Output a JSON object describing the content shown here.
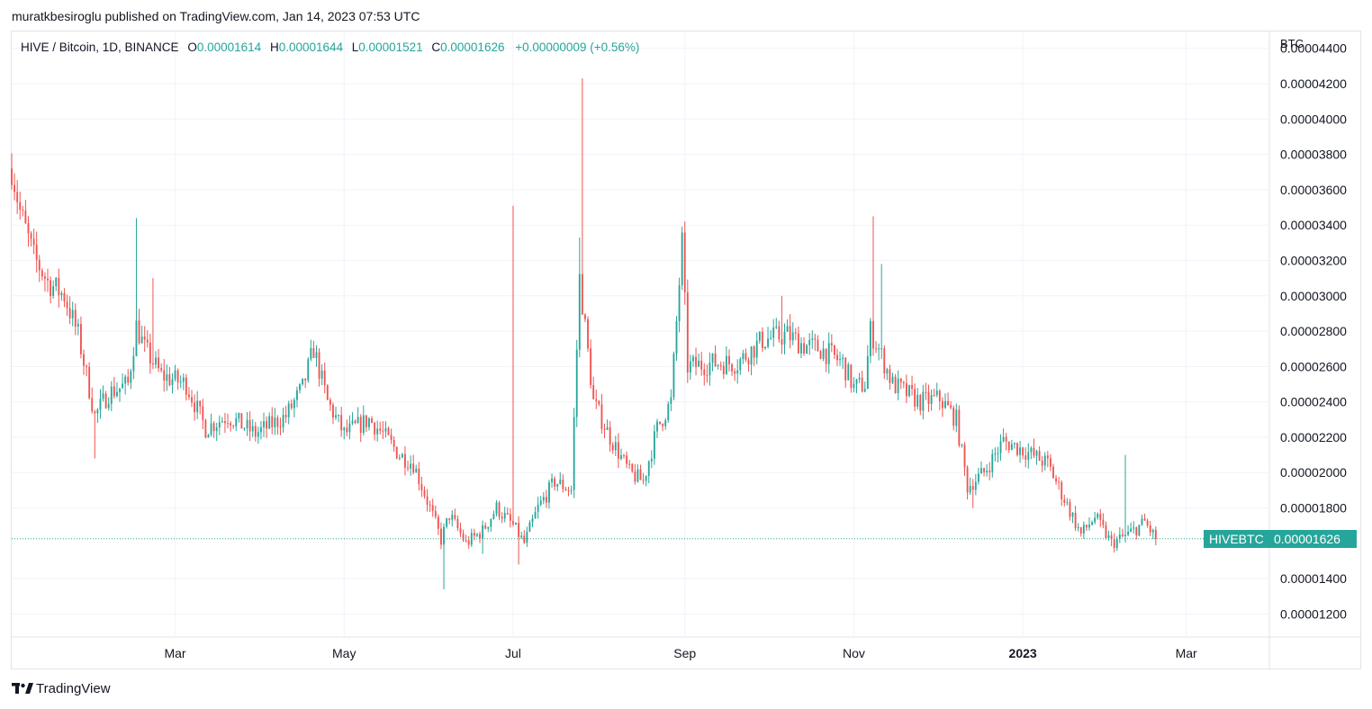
{
  "header": {
    "published": "muratkbesiroglu published on TradingView.com, Jan 14, 2023 07:53 UTC"
  },
  "legend": {
    "symbol": "HIVE / Bitcoin, 1D, BINANCE",
    "open_label": "O",
    "open": "0.00001614",
    "high_label": "H",
    "high": "0.00001644",
    "low_label": "L",
    "low": "0.00001521",
    "close_label": "C",
    "close": "0.00001626",
    "change": "+0.00000009 (+0.56%)"
  },
  "price_label": {
    "ticker": "HIVEBTC",
    "value": "0.00001626"
  },
  "footer": {
    "brand": "TradingView"
  },
  "colors": {
    "up": "#26a69a",
    "down": "#ef5350",
    "grid": "#f0f3fa",
    "axis_text": "#131722"
  },
  "chart_data": {
    "type": "candlestick",
    "symbol": "HIVEBTC",
    "interval": "1D",
    "exchange": "BINANCE",
    "currency_label": "BTC",
    "y_ticks": [
      "0.00004400",
      "0.00004200",
      "0.00004000",
      "0.00003800",
      "0.00003600",
      "0.00003400",
      "0.00003200",
      "0.00003000",
      "0.00002800",
      "0.00002600",
      "0.00002400",
      "0.00002200",
      "0.00002000",
      "0.00001800",
      "0.00001400",
      "0.00001200"
    ],
    "x_ticks": [
      {
        "label": "Mar",
        "bold": false
      },
      {
        "label": "May",
        "bold": false
      },
      {
        "label": "Jul",
        "bold": false
      },
      {
        "label": "Sep",
        "bold": false
      },
      {
        "label": "Nov",
        "bold": false
      },
      {
        "label": "2023",
        "bold": true
      },
      {
        "label": "Mar",
        "bold": false
      }
    ],
    "ylim": [
      1.08e-05,
      4.48e-05
    ],
    "last_close": 1.626e-05,
    "x_range": [
      "2022-01-01",
      "2023-03-31"
    ],
    "anchors": [
      [
        "2022-01-01",
        3.72e-05
      ],
      [
        "2022-01-04",
        3.48e-05
      ],
      [
        "2022-01-09",
        3.22e-05
      ],
      [
        "2022-01-14",
        3.08e-05
      ],
      [
        "2022-01-20",
        3e-05
      ],
      [
        "2022-01-25",
        2.78e-05
      ],
      [
        "2022-01-31",
        2.32e-05
      ],
      [
        "2022-02-05",
        2.45e-05
      ],
      [
        "2022-02-12",
        2.5e-05
      ],
      [
        "2022-02-15",
        2.83e-05
      ],
      [
        "2022-02-18",
        2.7e-05
      ],
      [
        "2022-02-24",
        2.55e-05
      ],
      [
        "2022-03-05",
        2.5e-05
      ],
      [
        "2022-03-12",
        2.25e-05
      ],
      [
        "2022-03-20",
        2.32e-05
      ],
      [
        "2022-03-30",
        2.22e-05
      ],
      [
        "2022-04-10",
        2.32e-05
      ],
      [
        "2022-04-16",
        2.48e-05
      ],
      [
        "2022-04-20",
        2.7e-05
      ],
      [
        "2022-04-25",
        2.4e-05
      ],
      [
        "2022-05-01",
        2.22e-05
      ],
      [
        "2022-05-10",
        2.3e-05
      ],
      [
        "2022-05-15",
        2.22e-05
      ],
      [
        "2022-05-21",
        2.1e-05
      ],
      [
        "2022-05-26",
        2.05e-05
      ],
      [
        "2022-06-01",
        1.8e-05
      ],
      [
        "2022-06-05",
        1.62e-05
      ],
      [
        "2022-06-08",
        1.76e-05
      ],
      [
        "2022-06-14",
        1.6e-05
      ],
      [
        "2022-06-20",
        1.67e-05
      ],
      [
        "2022-06-25",
        1.8e-05
      ],
      [
        "2022-07-01",
        1.7e-05
      ],
      [
        "2022-07-05",
        1.6e-05
      ],
      [
        "2022-07-10",
        1.8e-05
      ],
      [
        "2022-07-16",
        1.95e-05
      ],
      [
        "2022-07-22",
        1.9e-05
      ],
      [
        "2022-07-25",
        3.1e-05
      ],
      [
        "2022-07-30",
        2.4e-05
      ],
      [
        "2022-08-05",
        2.2e-05
      ],
      [
        "2022-08-12",
        2e-05
      ],
      [
        "2022-08-17",
        1.95e-05
      ],
      [
        "2022-08-22",
        2.25e-05
      ],
      [
        "2022-08-27",
        2.4e-05
      ],
      [
        "2022-08-31",
        3.3e-05
      ],
      [
        "2022-09-02",
        2.6e-05
      ],
      [
        "2022-09-12",
        2.62e-05
      ],
      [
        "2022-09-20",
        2.62e-05
      ],
      [
        "2022-09-29",
        2.75e-05
      ],
      [
        "2022-10-08",
        2.78e-05
      ],
      [
        "2022-10-14",
        2.72e-05
      ],
      [
        "2022-10-20",
        2.7e-05
      ],
      [
        "2022-10-28",
        2.62e-05
      ],
      [
        "2022-11-01",
        2.48e-05
      ],
      [
        "2022-11-05",
        2.5e-05
      ],
      [
        "2022-11-07",
        2.8e-05
      ],
      [
        "2022-11-10",
        2.7e-05
      ],
      [
        "2022-11-15",
        2.5e-05
      ],
      [
        "2022-11-25",
        2.4e-05
      ],
      [
        "2022-12-02",
        2.42e-05
      ],
      [
        "2022-12-08",
        2.3e-05
      ],
      [
        "2022-12-12",
        1.92e-05
      ],
      [
        "2022-12-18",
        2e-05
      ],
      [
        "2022-12-25",
        2.18e-05
      ],
      [
        "2023-01-02",
        2.12e-05
      ],
      [
        "2023-01-10",
        2.05e-05
      ],
      [
        "2023-01-16",
        1.85e-05
      ],
      [
        "2023-01-22",
        1.65e-05
      ],
      [
        "2023-01-27",
        1.75e-05
      ],
      [
        "2023-02-02",
        1.6e-05
      ],
      [
        "2023-02-08",
        1.65e-05
      ],
      [
        "2023-02-14",
        1.72e-05
      ],
      [
        "2023-02-18",
        1.626e-05
      ]
    ],
    "spikes": [
      [
        "2022-02-15",
        3.44e-05
      ],
      [
        "2022-02-21",
        3.1e-05
      ],
      [
        "2022-07-01",
        3.51e-05
      ],
      [
        "2022-07-26",
        4.23e-05
      ],
      [
        "2022-07-25",
        3.33e-05
      ],
      [
        "2022-10-06",
        3e-05
      ],
      [
        "2022-11-08",
        3.45e-05
      ],
      [
        "2022-11-11",
        3.18e-05
      ],
      [
        "2022-12-27",
        2.15e-05
      ],
      [
        "2023-02-07",
        2.1e-05
      ]
    ],
    "dips": [
      [
        "2022-01-31",
        2.08e-05
      ],
      [
        "2022-06-06",
        1.34e-05
      ],
      [
        "2022-06-20",
        1.54e-05
      ],
      [
        "2022-07-03",
        1.48e-05
      ],
      [
        "2022-12-14",
        1.8e-05
      ],
      [
        "2023-02-19",
        1.52e-05
      ]
    ]
  }
}
